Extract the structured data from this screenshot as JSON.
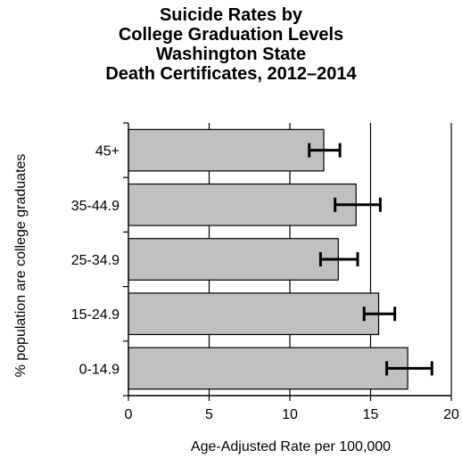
{
  "chart_data": {
    "type": "bar",
    "orientation": "horizontal",
    "title_lines": [
      "Suicide Rates by",
      "College Graduation Levels",
      "Washington State",
      "Death Certificates, 2012–2014"
    ],
    "categories": [
      "45+",
      "35-44.9",
      "25-34.9",
      "15-24.9",
      "0-14.9"
    ],
    "values": [
      12.1,
      14.1,
      13.0,
      15.5,
      17.3
    ],
    "error_low": [
      11.2,
      12.8,
      11.9,
      14.6,
      16.0
    ],
    "error_high": [
      13.1,
      15.6,
      14.2,
      16.5,
      18.8
    ],
    "xlabel": "Age-Adjusted Rate per 100,000",
    "ylabel": "% population are college graduates",
    "xlim": [
      0,
      20
    ],
    "xticks": [
      0,
      5,
      10,
      15,
      20
    ],
    "grid": "vertical",
    "colors": {
      "bar_fill": "#c0c0c0",
      "bar_stroke": "#000000",
      "error_bar": "#000000",
      "gridline": "#000000"
    }
  }
}
